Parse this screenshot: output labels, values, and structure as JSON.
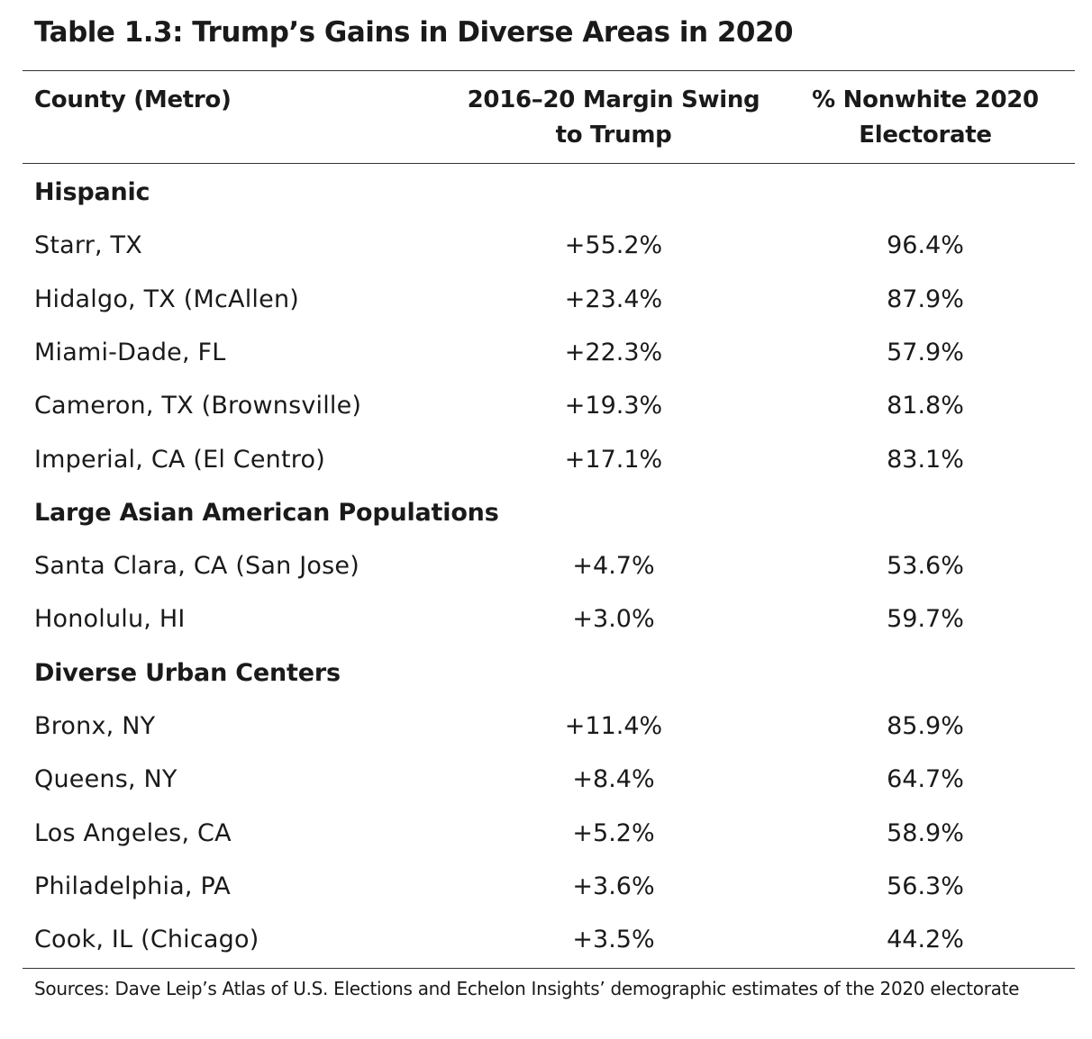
{
  "title": "Table 1.3: Trump’s Gains in Diverse Areas in 2020",
  "headers": {
    "county": "County (Metro)",
    "swing_line1": "2016–20 Margin Swing",
    "swing_line2": "to Trump",
    "nonwhite_line1": "% Nonwhite 2020",
    "nonwhite_line2": "Electorate"
  },
  "sections": [
    {
      "label": "Hispanic",
      "rows": [
        {
          "county": "Starr, TX",
          "swing": "+55.2%",
          "nonwhite": "96.4%"
        },
        {
          "county": "Hidalgo, TX (McAllen)",
          "swing": "+23.4%",
          "nonwhite": "87.9%"
        },
        {
          "county": "Miami-Dade, FL",
          "swing": "+22.3%",
          "nonwhite": "57.9%"
        },
        {
          "county": "Cameron, TX (Brownsville)",
          "swing": "+19.3%",
          "nonwhite": "81.8%"
        },
        {
          "county": "Imperial, CA (El Centro)",
          "swing": "+17.1%",
          "nonwhite": "83.1%"
        }
      ]
    },
    {
      "label": "Large Asian American Populations",
      "rows": [
        {
          "county": "Santa Clara, CA (San Jose)",
          "swing": "+4.7%",
          "nonwhite": "53.6%"
        },
        {
          "county": "Honolulu, HI",
          "swing": "+3.0%",
          "nonwhite": "59.7%"
        }
      ]
    },
    {
      "label": "Diverse Urban Centers",
      "rows": [
        {
          "county": "Bronx, NY",
          "swing": "+11.4%",
          "nonwhite": "85.9%"
        },
        {
          "county": "Queens, NY",
          "swing": "+8.4%",
          "nonwhite": "64.7%"
        },
        {
          "county": "Los Angeles, CA",
          "swing": "+5.2%",
          "nonwhite": "58.9%"
        },
        {
          "county": "Philadelphia, PA",
          "swing": "+3.6%",
          "nonwhite": "56.3%"
        },
        {
          "county": "Cook, IL (Chicago)",
          "swing": "+3.5%",
          "nonwhite": "44.2%"
        }
      ]
    }
  ],
  "source": "Sources: Dave Leip’s Atlas of U.S. Elections and Echelon Insights’ demographic estimates of the 2020 electorate"
}
